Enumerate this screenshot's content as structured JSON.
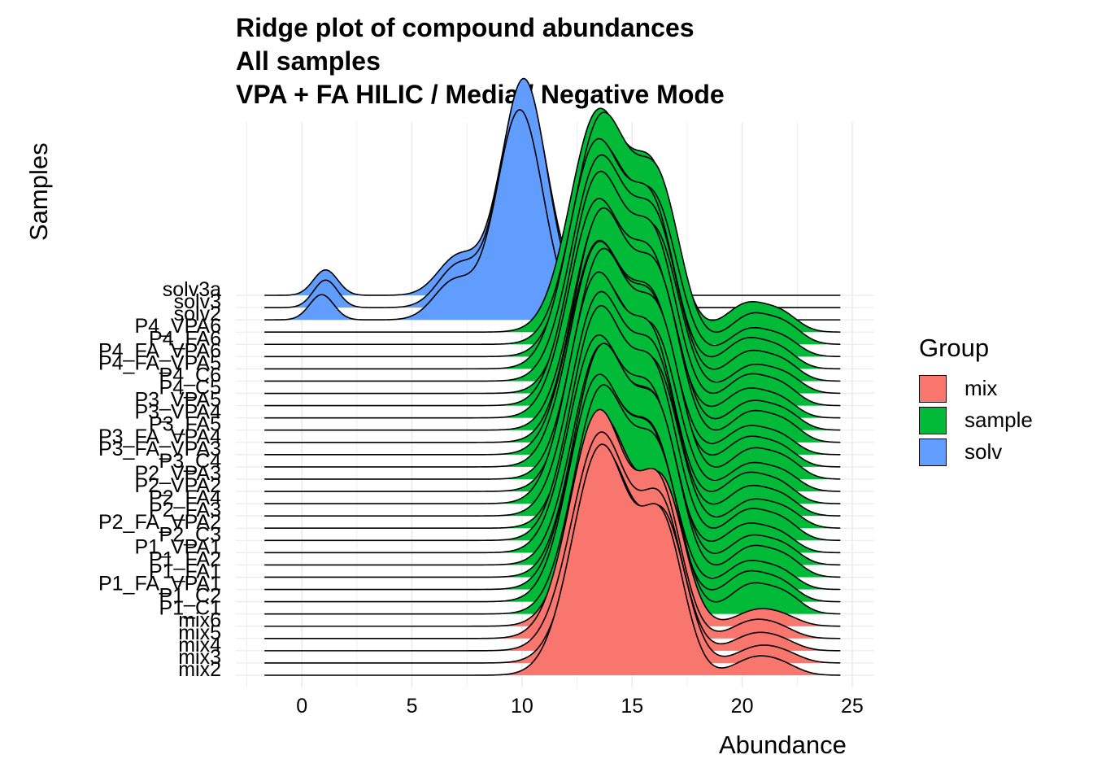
{
  "chart_data": {
    "type": "ridgeline",
    "title_lines": [
      "Ridge plot of compound abundances",
      "All samples",
      "VPA + FA HILIC / Media / Negative Mode"
    ],
    "xlabel": "Abundance",
    "ylabel": "Samples",
    "xlim": [
      -3,
      26
    ],
    "x_ticks": [
      0,
      5,
      10,
      15,
      20,
      25
    ],
    "grid": true,
    "legend": {
      "title": "Group",
      "placement": "right",
      "items": [
        {
          "label": "mix",
          "color": "#F8766D"
        },
        {
          "label": "sample",
          "color": "#00BA38"
        },
        {
          "label": "solv",
          "color": "#619CFF"
        }
      ]
    },
    "samples_bottom_to_top": [
      {
        "name": "mix2",
        "group": "mix"
      },
      {
        "name": "mix3",
        "group": "mix"
      },
      {
        "name": "mix4",
        "group": "mix"
      },
      {
        "name": "mix5",
        "group": "mix"
      },
      {
        "name": "mix6",
        "group": "mix"
      },
      {
        "name": "P1_C1",
        "group": "sample"
      },
      {
        "name": "P1_C2",
        "group": "sample"
      },
      {
        "name": "P1_FA_VPA1",
        "group": "sample"
      },
      {
        "name": "P1_FA1",
        "group": "sample"
      },
      {
        "name": "P1_FA2",
        "group": "sample"
      },
      {
        "name": "P1_VPA1",
        "group": "sample"
      },
      {
        "name": "P2_C3",
        "group": "sample"
      },
      {
        "name": "P2_FA_VPA2",
        "group": "sample"
      },
      {
        "name": "P2_FA3",
        "group": "sample"
      },
      {
        "name": "P2_FA4",
        "group": "sample"
      },
      {
        "name": "P2_VPA2",
        "group": "sample"
      },
      {
        "name": "P2_VPA3",
        "group": "sample"
      },
      {
        "name": "P3_C4",
        "group": "sample"
      },
      {
        "name": "P3_FA_VPA3",
        "group": "sample"
      },
      {
        "name": "P3_FA_VPA4",
        "group": "sample"
      },
      {
        "name": "P3_FA5",
        "group": "sample"
      },
      {
        "name": "P3_VPA4",
        "group": "sample"
      },
      {
        "name": "P3_VPA5",
        "group": "sample"
      },
      {
        "name": "P4_C5",
        "group": "sample"
      },
      {
        "name": "P4_C6",
        "group": "sample"
      },
      {
        "name": "P4_FA_VPA5",
        "group": "sample"
      },
      {
        "name": "P4_FA_VPA6",
        "group": "sample"
      },
      {
        "name": "P4_FA6",
        "group": "sample"
      },
      {
        "name": "P4_VPA6",
        "group": "sample"
      },
      {
        "name": "solv2",
        "group": "solv"
      },
      {
        "name": "solv3",
        "group": "solv"
      },
      {
        "name": "solv3a",
        "group": "solv"
      }
    ],
    "density_shape_by_group": {
      "mix": {
        "x_range": [
          -1.7,
          24.5
        ],
        "components": [
          {
            "mean": 13.6,
            "sd": 1.3,
            "weight": 1.0
          },
          {
            "mean": 16.4,
            "sd": 0.95,
            "weight": 0.62
          },
          {
            "mean": 20.5,
            "sd": 0.9,
            "weight": 0.07
          },
          {
            "mean": 21.8,
            "sd": 0.8,
            "weight": 0.04
          }
        ]
      },
      "sample": {
        "x_range": [
          -1.7,
          24.5
        ],
        "components": [
          {
            "mean": 13.5,
            "sd": 1.25,
            "weight": 1.0
          },
          {
            "mean": 16.1,
            "sd": 1.0,
            "weight": 0.66
          },
          {
            "mean": 20.3,
            "sd": 0.95,
            "weight": 0.13
          },
          {
            "mean": 21.9,
            "sd": 0.75,
            "weight": 0.07
          }
        ]
      },
      "solv": {
        "x_range": [
          -1.7,
          24.5
        ],
        "components": [
          {
            "mean": 10.0,
            "sd": 1.05,
            "weight": 1.0
          },
          {
            "mean": 7.0,
            "sd": 0.9,
            "weight": 0.18
          },
          {
            "mean": 1.0,
            "sd": 0.55,
            "weight": 0.12
          }
        ]
      }
    }
  }
}
